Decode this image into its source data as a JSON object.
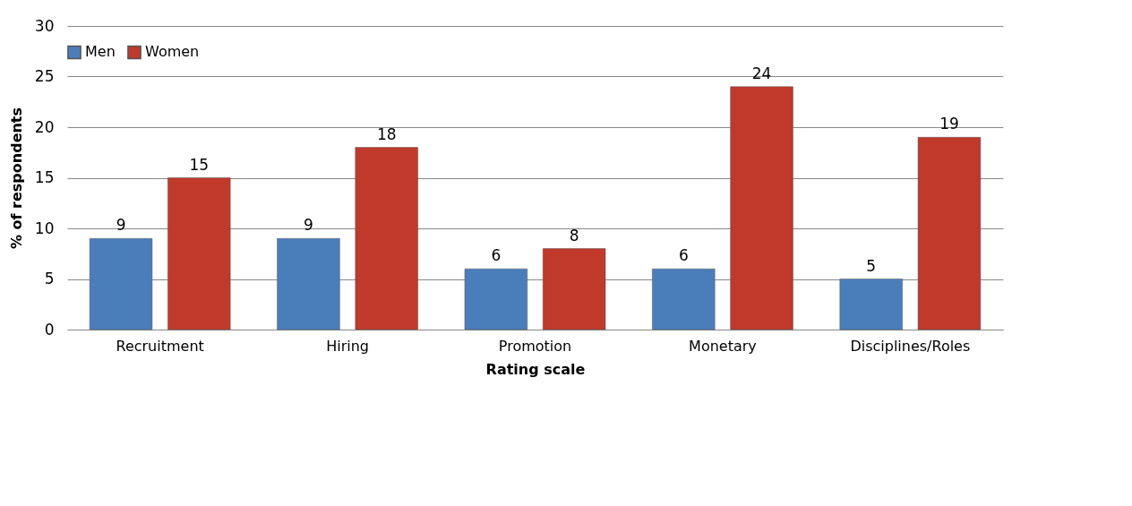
{
  "chart_data": {
    "type": "bar",
    "xlabel": "Rating scale",
    "ylabel": "% of respondents",
    "categories": [
      "Recruitment",
      "Hiring",
      "Promotion",
      "Monetary",
      "Disciplines/Roles"
    ],
    "series": [
      {
        "name": "Men",
        "color": "#4a7ebb",
        "values": [
          9,
          9,
          6,
          6,
          5
        ]
      },
      {
        "name": "Women",
        "color": "#c0392b",
        "values": [
          15,
          18,
          8,
          24,
          19
        ]
      }
    ],
    "ylim": [
      0,
      30
    ],
    "yticks": [
      0,
      5,
      10,
      15,
      20,
      25,
      30
    ],
    "grid": "y",
    "legend": "top",
    "data_labels": true
  }
}
